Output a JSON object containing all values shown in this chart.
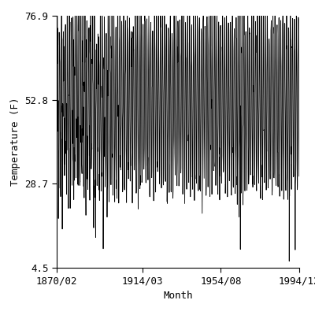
{
  "title": "",
  "xlabel": "Month",
  "ylabel": "Temperature (F)",
  "ylim": [
    4.5,
    76.9
  ],
  "yticks": [
    4.5,
    28.7,
    52.8,
    76.9
  ],
  "xlim_start_year": 1870,
  "xlim_start_month": 2,
  "xlim_end_year": 1994,
  "xlim_end_month": 12,
  "xtick_labels": [
    "1870/02",
    "1914/03",
    "1954/08",
    "1994/12"
  ],
  "xtick_positions": [
    1870.083,
    1914.167,
    1954.583,
    1994.917
  ],
  "seasonal_mean": 52.0,
  "seasonal_amplitude": 24.0,
  "line_color": "#000000",
  "line_width": 0.6,
  "background_color": "#ffffff",
  "font_family": "monospace",
  "font_size": 9
}
